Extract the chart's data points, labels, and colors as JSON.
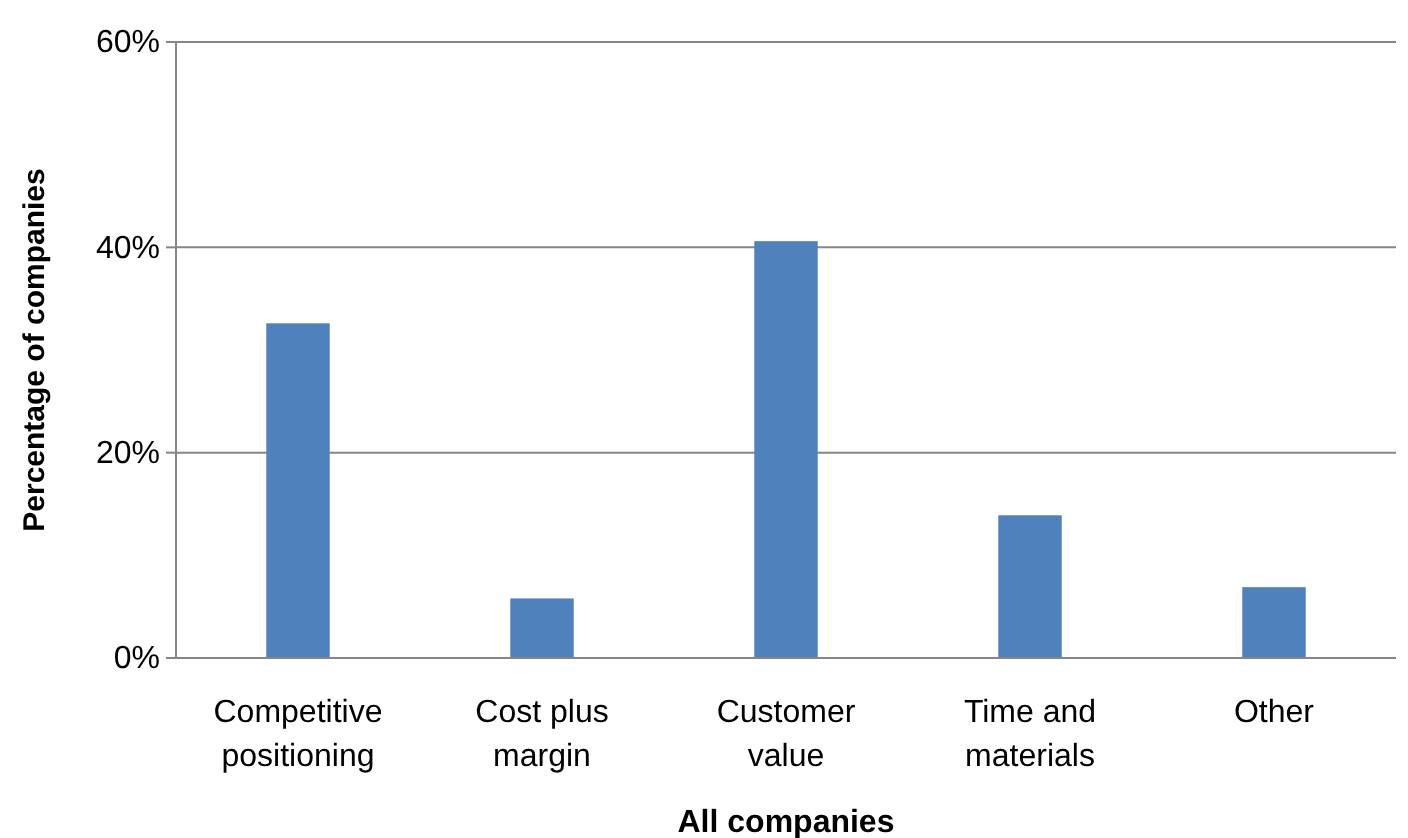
{
  "chart_data": {
    "type": "bar",
    "xlabel": "All companies",
    "ylabel": "Percentage of companies",
    "categories": [
      "Competitive positioning",
      "Cost plus margin",
      "Customer value",
      "Time and materials",
      "Other"
    ],
    "values": [
      32.6,
      5.8,
      40.6,
      13.9,
      6.9
    ],
    "color": "#4f81bd",
    "ylim": [
      0,
      60
    ],
    "yticks": [
      {
        "value": 0,
        "label": "0%"
      },
      {
        "value": 20,
        "label": "20%"
      },
      {
        "value": 40,
        "label": "40%"
      },
      {
        "value": 60,
        "label": "60%"
      }
    ],
    "grid": "y"
  }
}
